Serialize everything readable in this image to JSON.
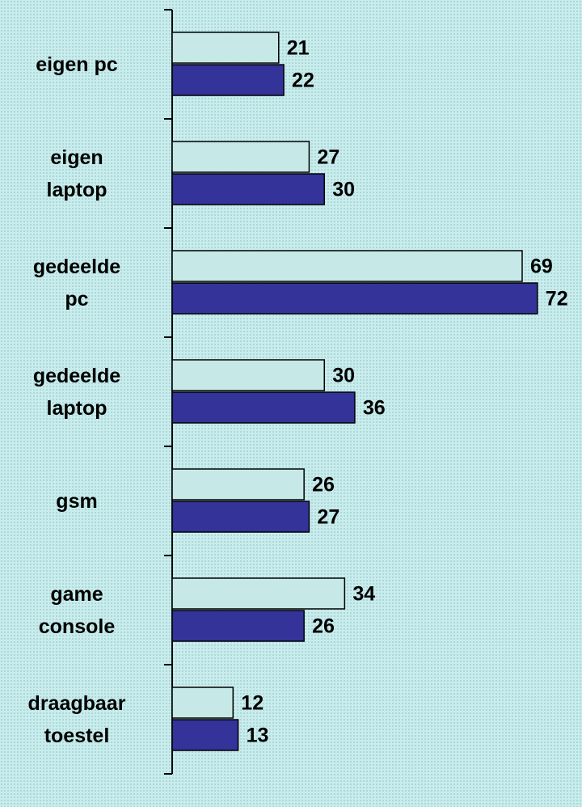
{
  "chart_data": {
    "type": "barh",
    "categories": [
      "eigen pc",
      "eigen\nlaptop",
      "gedeelde\npc",
      "gedeelde\nlaptop",
      "gsm",
      "game\nconsole",
      "draagbaar\ntoestel"
    ],
    "series": [
      {
        "color": "#c6e9e7",
        "values": [
          21,
          27,
          69,
          30,
          26,
          34,
          12
        ]
      },
      {
        "color": "#333399",
        "values": [
          22,
          30,
          72,
          36,
          27,
          26,
          13
        ]
      }
    ],
    "xlim": [
      0,
      80
    ]
  }
}
